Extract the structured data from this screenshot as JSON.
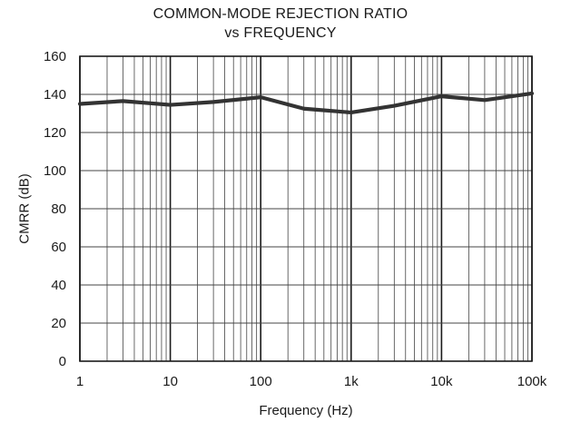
{
  "chart_data": {
    "type": "line",
    "title": "COMMON-MODE REJECTION RATIO",
    "subtitle": "vs FREQUENCY",
    "xlabel": "Frequency (Hz)",
    "ylabel": "CMRR (dB)",
    "xscale": "log",
    "xlim": [
      1,
      100000
    ],
    "ylim": [
      0,
      160
    ],
    "x_ticks": [
      1,
      10,
      100,
      1000,
      10000,
      100000
    ],
    "x_tick_labels": [
      "1",
      "10",
      "100",
      "1k",
      "10k",
      "100k"
    ],
    "y_ticks": [
      0,
      20,
      40,
      60,
      80,
      100,
      120,
      140,
      160
    ],
    "y_tick_labels": [
      "0",
      "20",
      "40",
      "60",
      "80",
      "100",
      "120",
      "140",
      "160"
    ],
    "grid": true,
    "legend": "none",
    "series": [
      {
        "color": "#333333",
        "x": [
          1,
          3,
          10,
          30,
          100,
          300,
          1000,
          3000,
          10000,
          30000,
          100000
        ],
        "y": [
          135,
          136.5,
          134.5,
          136,
          138.5,
          132.5,
          130.5,
          134,
          139,
          137,
          140.5
        ]
      }
    ]
  }
}
